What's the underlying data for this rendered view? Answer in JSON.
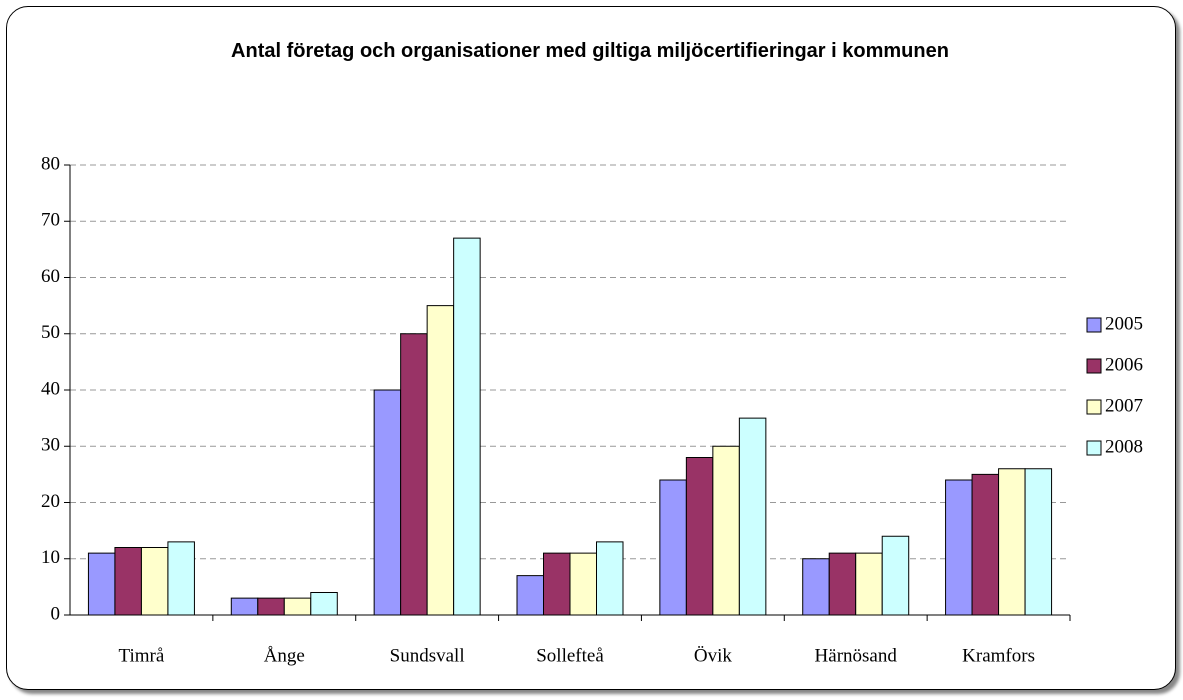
{
  "chart_data": {
    "type": "bar",
    "title": "Antal företag och organisationer med giltiga miljöcertifieringar i kommunen",
    "categories": [
      "Timrå",
      "Ånge",
      "Sundsvall",
      "Sollefteå",
      "Övik",
      "Härnösand",
      "Kramfors"
    ],
    "series": [
      {
        "name": "2005",
        "color": "#9999ff",
        "values": [
          11,
          3,
          40,
          7,
          24,
          10,
          24
        ]
      },
      {
        "name": "2006",
        "color": "#993366",
        "values": [
          12,
          3,
          50,
          11,
          28,
          11,
          25
        ]
      },
      {
        "name": "2007",
        "color": "#ffffcc",
        "values": [
          12,
          3,
          55,
          11,
          30,
          11,
          26
        ]
      },
      {
        "name": "2008",
        "color": "#ccffff",
        "values": [
          13,
          4,
          67,
          13,
          35,
          14,
          26
        ]
      }
    ],
    "ylim": [
      0,
      80
    ],
    "yticks": [
      0,
      10,
      20,
      30,
      40,
      50,
      60,
      70,
      80
    ],
    "grid": true,
    "legend": "right"
  }
}
